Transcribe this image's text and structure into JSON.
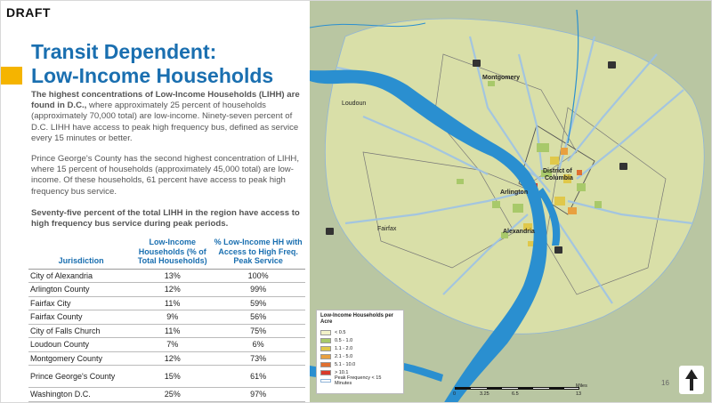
{
  "header": {
    "draft_label": "DRAFT"
  },
  "title": {
    "line1": "Transit Dependent:",
    "line2": "Low-Income Households"
  },
  "paragraphs": {
    "p1_lead": "The highest concentrations of Low-Income Households (LIHH) are found in D.C.,",
    "p1_rest": " where approximately 25 percent of households (approximately 70,000 total) are low-income. Ninety-seven percent of D.C. LIHH have access to peak high frequency bus, defined as service every 15 minutes or better.",
    "p2": "Prince George's County has the second highest concentration of LIHH, where 15 percent of households (approximately 45,000 total) are low-income. Of these households, 61 percent have access to peak high frequency bus service.",
    "p3": "Seventy-five percent of the total LIHH in the region have access to high frequency bus service during peak periods."
  },
  "table": {
    "headers": [
      "Jurisdiction",
      "Low-Income Households (% of Total Households)",
      "% Low-Income HH with Access to High Freq. Peak Service"
    ],
    "rows": [
      [
        "City of Alexandria",
        "13%",
        "100%"
      ],
      [
        "Arlington County",
        "12%",
        "99%"
      ],
      [
        "Fairfax City",
        "11%",
        "59%"
      ],
      [
        "Fairfax County",
        "9%",
        "56%"
      ],
      [
        "City of Falls Church",
        "11%",
        "75%"
      ],
      [
        "Loudoun County",
        "7%",
        "6%"
      ],
      [
        "Montgomery County",
        "12%",
        "73%"
      ],
      [
        "Prince George's County",
        "15%",
        "61%"
      ],
      [
        "Washington D.C.",
        "25%",
        "97%"
      ]
    ]
  },
  "map": {
    "places": {
      "montgomery": "Montgomery",
      "loudoun": "Loudoun",
      "arlington": "Arlington",
      "dc_line1": "District of",
      "dc_line2": "Columbia",
      "fairfax": "Fairfax",
      "alexandria": "Alexandria"
    },
    "legend": {
      "title": "Low-Income Households per Acre",
      "items": [
        {
          "label": "< 0.5",
          "color": "#f2f2c8"
        },
        {
          "label": "0.5 - 1.0",
          "color": "#a8c96a"
        },
        {
          "label": "1.1 - 2.0",
          "color": "#e0c84a"
        },
        {
          "label": "2.1 - 5.0",
          "color": "#e8a040"
        },
        {
          "label": "5.1 - 10.0",
          "color": "#e07030"
        },
        {
          "label": "> 10.1",
          "color": "#d83a2a"
        }
      ],
      "line_label": "Peak Frequency < 15 Minutes"
    },
    "scale": {
      "ticks": [
        "0",
        "3.25",
        "6.5",
        "13"
      ],
      "unit": "Miles"
    },
    "colors": {
      "land": "#b9c6a2",
      "region": "#d9dfa8",
      "water": "#2a8fd0",
      "routes": "#9ec3e6"
    }
  },
  "page_number": "16"
}
